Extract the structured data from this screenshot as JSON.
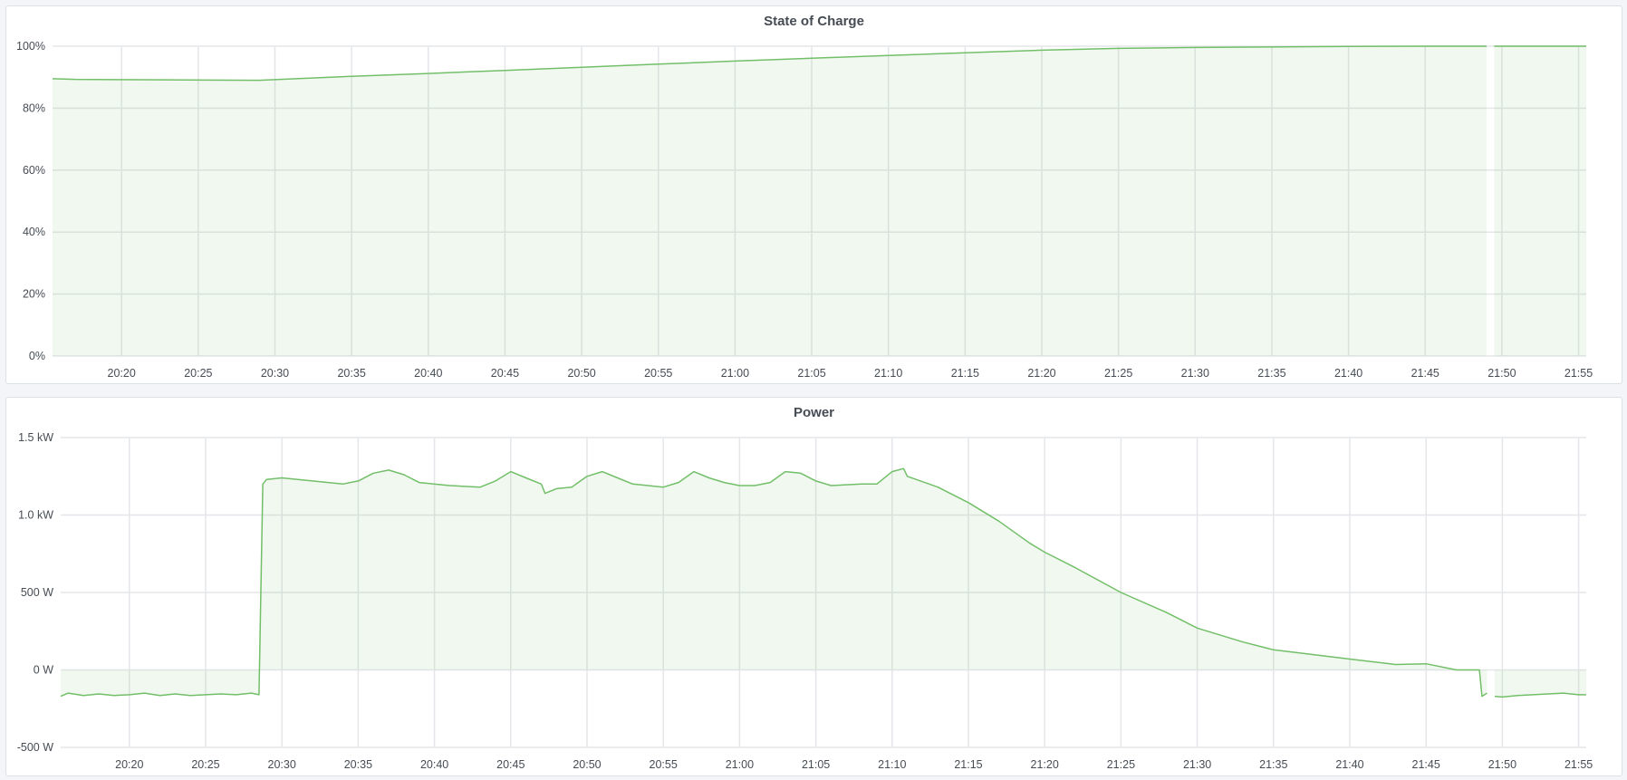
{
  "theme": {
    "line": "#73bf69",
    "fill": "rgba(115,191,105,0.11)",
    "grid": "#e4e6e9"
  },
  "chart_data": [
    {
      "type": "area",
      "title": "State of Charge",
      "xlim": [
        "20:15:30",
        "21:55:30"
      ],
      "x_ticks": [
        "20:20",
        "20:25",
        "20:30",
        "20:35",
        "20:40",
        "20:45",
        "20:50",
        "20:55",
        "21:00",
        "21:05",
        "21:10",
        "21:15",
        "21:20",
        "21:25",
        "21:30",
        "21:35",
        "21:40",
        "21:45",
        "21:50",
        "21:55"
      ],
      "ylim": [
        0,
        100
      ],
      "y_ticks": [
        0,
        20,
        40,
        60,
        80,
        100
      ],
      "y_tick_labels": [
        "0%",
        "20%",
        "40%",
        "60%",
        "80%",
        "100%"
      ],
      "grid": true,
      "series": [
        {
          "segments": [
            [
              [
                "20:15:30",
                89.5
              ],
              [
                "20:17:00",
                89.3
              ],
              [
                "20:29:00",
                89.0
              ],
              [
                "20:30:00",
                89.2
              ],
              [
                "20:35:00",
                90.3
              ],
              [
                "20:40:00",
                91.2
              ],
              [
                "20:45:00",
                92.2
              ],
              [
                "20:50:00",
                93.2
              ],
              [
                "20:55:00",
                94.2
              ],
              [
                "21:00:00",
                95.2
              ],
              [
                "21:05:00",
                96.1
              ],
              [
                "21:10:00",
                97.0
              ],
              [
                "21:15:00",
                97.9
              ],
              [
                "21:20:00",
                98.7
              ],
              [
                "21:25:00",
                99.3
              ],
              [
                "21:30:00",
                99.6
              ],
              [
                "21:40:00",
                99.9
              ],
              [
                "21:45:00",
                100
              ],
              [
                "21:49:00",
                100
              ]
            ],
            [
              [
                "21:49:30",
                100
              ],
              [
                "21:55:30",
                100
              ]
            ]
          ]
        }
      ]
    },
    {
      "type": "area",
      "title": "Power",
      "xlim": [
        "20:15:30",
        "21:55:30"
      ],
      "x_ticks": [
        "20:20",
        "20:25",
        "20:30",
        "20:35",
        "20:40",
        "20:45",
        "20:50",
        "20:55",
        "21:00",
        "21:05",
        "21:10",
        "21:15",
        "21:20",
        "21:25",
        "21:30",
        "21:35",
        "21:40",
        "21:45",
        "21:50",
        "21:55"
      ],
      "ylim": [
        -500,
        1500
      ],
      "y_ticks": [
        -500,
        0,
        500,
        1000,
        1500
      ],
      "y_tick_labels": [
        "-500 W",
        "0 W",
        "500 W",
        "1.0 kW",
        "1.5 kW"
      ],
      "grid": true,
      "series": [
        {
          "segments": [
            [
              [
                "20:15:30",
                -170
              ],
              [
                "20:16:00",
                -150
              ],
              [
                "20:17:00",
                -165
              ],
              [
                "20:18:00",
                -155
              ],
              [
                "20:19:00",
                -165
              ],
              [
                "20:20:00",
                -160
              ],
              [
                "20:21:00",
                -150
              ],
              [
                "20:22:00",
                -165
              ],
              [
                "20:23:00",
                -155
              ],
              [
                "20:24:00",
                -165
              ],
              [
                "20:25:00",
                -160
              ],
              [
                "20:26:00",
                -155
              ],
              [
                "20:27:00",
                -160
              ],
              [
                "20:28:00",
                -150
              ],
              [
                "20:28:30",
                -160
              ],
              [
                "20:28:45",
                1200
              ],
              [
                "20:29:00",
                1230
              ],
              [
                "20:30:00",
                1240
              ],
              [
                "20:32:00",
                1220
              ],
              [
                "20:34:00",
                1200
              ],
              [
                "20:35:00",
                1220
              ],
              [
                "20:36:00",
                1270
              ],
              [
                "20:37:00",
                1290
              ],
              [
                "20:38:00",
                1260
              ],
              [
                "20:39:00",
                1210
              ],
              [
                "20:41:00",
                1190
              ],
              [
                "20:43:00",
                1180
              ],
              [
                "20:44:00",
                1220
              ],
              [
                "20:45:00",
                1280
              ],
              [
                "20:46:00",
                1240
              ],
              [
                "20:47:00",
                1200
              ],
              [
                "20:47:15",
                1140
              ],
              [
                "20:48:00",
                1170
              ],
              [
                "20:49:00",
                1180
              ],
              [
                "20:50:00",
                1250
              ],
              [
                "20:51:00",
                1280
              ],
              [
                "20:52:00",
                1240
              ],
              [
                "20:53:00",
                1200
              ],
              [
                "20:55:00",
                1180
              ],
              [
                "20:56:00",
                1210
              ],
              [
                "20:57:00",
                1280
              ],
              [
                "20:58:00",
                1240
              ],
              [
                "20:59:00",
                1210
              ],
              [
                "21:00:00",
                1190
              ],
              [
                "21:01:00",
                1190
              ],
              [
                "21:02:00",
                1210
              ],
              [
                "21:03:00",
                1280
              ],
              [
                "21:04:00",
                1270
              ],
              [
                "21:05:00",
                1220
              ],
              [
                "21:06:00",
                1190
              ],
              [
                "21:08:00",
                1200
              ],
              [
                "21:09:00",
                1200
              ],
              [
                "21:10:00",
                1280
              ],
              [
                "21:10:45",
                1300
              ],
              [
                "21:11:00",
                1250
              ],
              [
                "21:13:00",
                1180
              ],
              [
                "21:15:00",
                1080
              ],
              [
                "21:17:00",
                960
              ],
              [
                "21:19:00",
                820
              ],
              [
                "21:20:00",
                760
              ],
              [
                "21:22:00",
                660
              ],
              [
                "21:25:00",
                500
              ],
              [
                "21:28:00",
                370
              ],
              [
                "21:30:00",
                270
              ],
              [
                "21:33:00",
                180
              ],
              [
                "21:35:00",
                130
              ],
              [
                "21:40:00",
                70
              ],
              [
                "21:43:00",
                35
              ],
              [
                "21:45:00",
                40
              ],
              [
                "21:47:00",
                0
              ],
              [
                "21:48:30",
                0
              ],
              [
                "21:48:40",
                -170
              ],
              [
                "21:49:00",
                -150
              ]
            ],
            [
              [
                "21:49:30",
                -170
              ],
              [
                "21:50:00",
                -175
              ],
              [
                "21:51:00",
                -165
              ],
              [
                "21:52:00",
                -160
              ],
              [
                "21:53:00",
                -155
              ],
              [
                "21:54:00",
                -150
              ],
              [
                "21:55:00",
                -160
              ],
              [
                "21:55:30",
                -160
              ]
            ]
          ]
        }
      ]
    }
  ]
}
